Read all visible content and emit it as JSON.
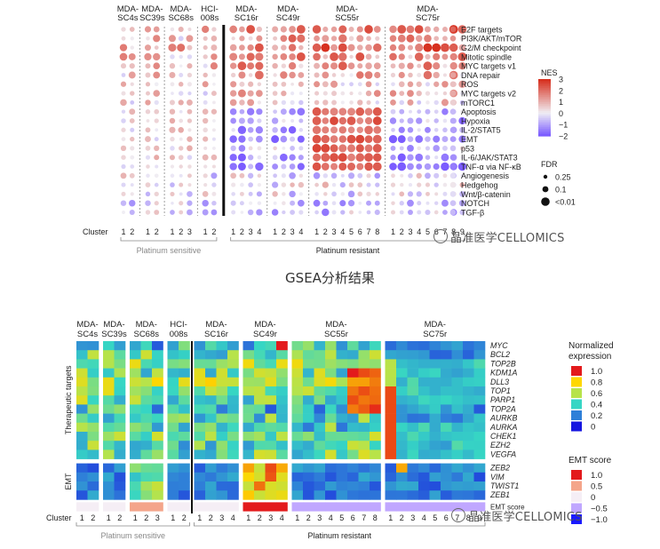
{
  "caption": "GSEA分析结果",
  "watermark": "晶准医学CELLOMICS",
  "chart_data": [
    {
      "type": "dot",
      "groups": [
        {
          "label": "MDA-SC4s",
          "clusters": 2
        },
        {
          "label": "MDA-SC39s",
          "clusters": 2
        },
        {
          "label": "MDA-SC68s",
          "clusters": 3
        },
        {
          "label": "HCI-008s",
          "clusters": 2
        },
        {
          "label": "MDA-SC16r",
          "clusters": 4
        },
        {
          "label": "MDA-SC49r",
          "clusters": 4
        },
        {
          "label": "MDA-SC55r",
          "clusters": 8
        },
        {
          "label": "MDA-SC75r",
          "clusters": 9
        }
      ],
      "cluster_axis_label": "Cluster",
      "sensitive_label": "Platinum sensitive",
      "resistant_label": "Platinum resistant",
      "pathways": [
        "E2F targets",
        "PI3K/AKT/mTOR",
        "G2/M checkpoint",
        "Mitotic spindle",
        "MYC targets v1",
        "DNA repair",
        "ROS",
        "MYC targets v2",
        "mTORC1",
        "Apoptosis",
        "Hypoxia",
        "IL-2/STAT5",
        "EMT",
        "p53",
        "IL-6/JAK/STAT3",
        "TNF-α via NF-κB",
        "Angiogenesis",
        "Hedgehog",
        "Wnt/β-catenin",
        "NOTCH",
        "TGF-β"
      ],
      "color_legend": {
        "title": "NES",
        "ticks": [
          "3",
          "2",
          "1",
          "0",
          "−1",
          "−2"
        ],
        "range": [
          -2,
          3
        ],
        "colors": [
          "#7b5cff",
          "#f2f2f2",
          "#d7301f"
        ]
      },
      "size_legend": {
        "title": "FDR",
        "labels": [
          "0.25",
          "0.1",
          "<0.01"
        ]
      }
    },
    {
      "type": "heatmap",
      "groups": [
        {
          "label": "MDA-SC4s",
          "clusters": 2
        },
        {
          "label": "MDA-SC39s",
          "clusters": 2
        },
        {
          "label": "MDA-SC68s",
          "clusters": 3
        },
        {
          "label": "HCI-008s",
          "clusters": 2
        },
        {
          "label": "MDA-SC16r",
          "clusters": 4
        },
        {
          "label": "MDA-SC49r",
          "clusters": 4
        },
        {
          "label": "MDA-SC55r",
          "clusters": 8
        },
        {
          "label": "MDA-SC75r",
          "clusters": 9
        }
      ],
      "therapeutic_label": "Therapeutic targets",
      "therapeutic_genes": [
        "MYC",
        "BCL2",
        "TOP2B",
        "KDM1A",
        "DLL3",
        "TOP1",
        "PARP1",
        "TOP2A",
        "AURKB",
        "AURKA",
        "CHEK1",
        "EZH2",
        "VEGFA"
      ],
      "emt_label": "EMT",
      "emt_genes": [
        "ZEB2",
        "VIM",
        "TWIST1",
        "ZEB1"
      ],
      "emt_score_label": "EMT score",
      "cluster_axis_label": "Cluster",
      "sensitive_label": "Platinum sensitive",
      "resistant_label": "Platinum resistant",
      "expr_legend": {
        "title": "Normalized expression",
        "ticks": [
          "1.0",
          "0.8",
          "0.6",
          "0.4",
          "0.2",
          "0"
        ],
        "colors": [
          "#e31a1c",
          "#ffd700",
          "#b7e34a",
          "#36d6c4",
          "#2f7fd8",
          "#1515e0"
        ]
      },
      "emt_legend": {
        "title": "EMT score",
        "ticks": [
          "1.0",
          "0.5",
          "0",
          "−0.5",
          "−1.0"
        ],
        "colors": [
          "#e31a1c",
          "#f4a58a",
          "#f5eef5",
          "#c0a7ff",
          "#1a1aff"
        ]
      }
    }
  ]
}
